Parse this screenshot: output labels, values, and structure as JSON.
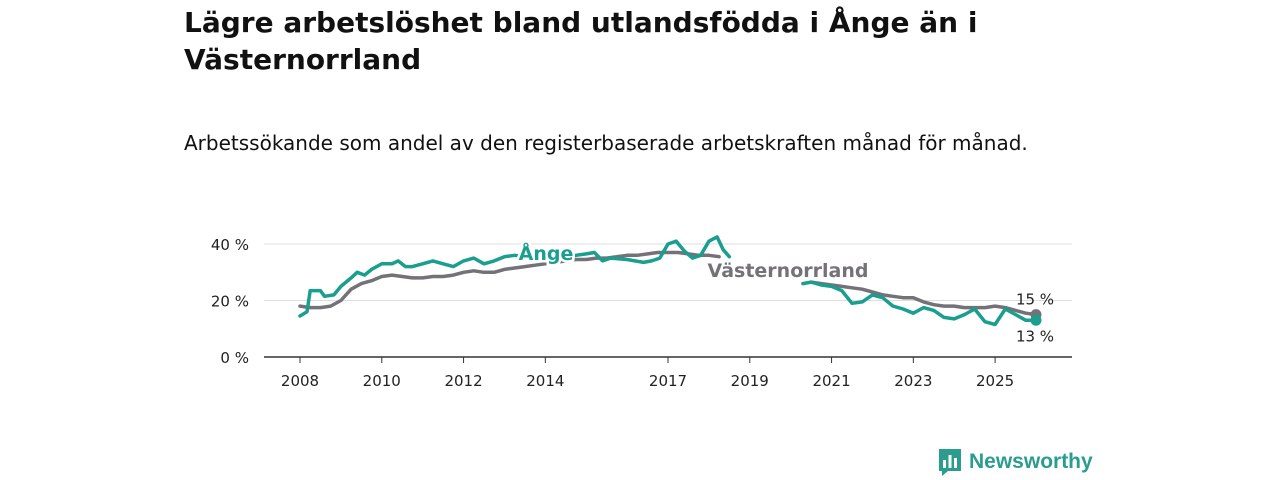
{
  "title": "Lägre arbetslöshet bland utlandsfödda i Ånge än i Västernorrland",
  "subtitle": "Arbetssökande som andel av den registerbaserade arbetskraften månad för månad.",
  "brand": {
    "name": "Newsworthy"
  },
  "colors": {
    "ange": "#1a9e8f",
    "vasternorrland": "#757178",
    "grid": "#dddddd",
    "axis": "#333333"
  },
  "chart_data": {
    "type": "line",
    "title": "Lägre arbetslöshet bland utlandsfödda i Ånge än i Västernorrland",
    "xlabel": "",
    "ylabel": "",
    "xlim": [
      2008,
      2026
    ],
    "ylim": [
      0,
      40
    ],
    "y_ticks": [
      0,
      20,
      40
    ],
    "y_tick_labels": [
      "0 %",
      "20 %",
      "40 %"
    ],
    "x_ticks": [
      2008,
      2010,
      2012,
      2014,
      2017,
      2019,
      2021,
      2023,
      2025
    ],
    "x_tick_labels": [
      "2008",
      "2010",
      "2012",
      "2014",
      "2017",
      "2019",
      "2021",
      "2023",
      "2025"
    ],
    "grid": true,
    "series": [
      {
        "name": "Ånge",
        "label": "Ånge",
        "end_label": "13 %",
        "end_value": 13,
        "x": [
          2008.0,
          2008.17,
          2008.25,
          2008.5,
          2008.6,
          2008.83,
          2009.0,
          2009.25,
          2009.4,
          2009.58,
          2009.75,
          2010.0,
          2010.25,
          2010.4,
          2010.58,
          2010.75,
          2011.0,
          2011.25,
          2011.5,
          2011.75,
          2012.0,
          2012.25,
          2012.5,
          2012.75,
          2013.0,
          2013.25,
          2013.5,
          null,
          2014.5,
          2014.75,
          2015.0,
          2015.2,
          2015.4,
          2015.6,
          2016.0,
          2016.4,
          2016.6,
          2016.8,
          2017.0,
          2017.2,
          2017.4,
          2017.6,
          2017.8,
          2018.0,
          2018.2,
          2018.35,
          2018.5,
          null,
          2020.3,
          2020.5,
          2020.75,
          2021.0,
          2021.25,
          2021.5,
          2021.75,
          2022.0,
          2022.25,
          2022.5,
          2022.75,
          2023.0,
          2023.25,
          2023.5,
          2023.75,
          2024.0,
          2024.25,
          2024.5,
          2024.75,
          2025.0,
          2025.25,
          2025.5,
          2025.75,
          2026.0
        ],
        "values": [
          14.5,
          16,
          23.5,
          23.5,
          21.5,
          22,
          25,
          28,
          30,
          29,
          31,
          33,
          33,
          34,
          32,
          32,
          33,
          34,
          33,
          32,
          34,
          35,
          33,
          34,
          35.5,
          36,
          35.5,
          null,
          35,
          36,
          36.5,
          37,
          34,
          35,
          34.5,
          33.5,
          34,
          35,
          40,
          41,
          37.5,
          35,
          36,
          41,
          42.5,
          38,
          35.5,
          null,
          26,
          26.5,
          25.5,
          25,
          23.5,
          19,
          19.5,
          22,
          21,
          18,
          17,
          15.5,
          17.5,
          16.5,
          14,
          13.5,
          15,
          17,
          12.5,
          11.5,
          17,
          15,
          13,
          13
        ]
      },
      {
        "name": "Västernorrland",
        "label": "Västernorrland",
        "end_label": "15 %",
        "end_value": 15,
        "x": [
          2008.0,
          2008.25,
          2008.5,
          2008.75,
          2009.0,
          2009.25,
          2009.5,
          2009.75,
          2010.0,
          2010.25,
          2010.5,
          2010.75,
          2011.0,
          2011.25,
          2011.5,
          2011.75,
          2012.0,
          2012.25,
          2012.5,
          2012.75,
          2013.0,
          2013.25,
          2013.5,
          2013.75,
          2014.0,
          2014.25,
          2014.5,
          2014.75,
          2015.0,
          2015.25,
          2015.5,
          2015.75,
          2016.0,
          2016.25,
          2016.5,
          2016.75,
          2017.0,
          2017.25,
          2017.5,
          2017.75,
          2018.0,
          2018.25,
          null,
          2020.5,
          2020.75,
          2021.0,
          2021.25,
          2021.5,
          2021.75,
          2022.0,
          2022.25,
          2022.5,
          2022.75,
          2023.0,
          2023.25,
          2023.5,
          2023.75,
          2024.0,
          2024.25,
          2024.5,
          2024.75,
          2025.0,
          2025.25,
          2025.5,
          2025.75,
          2026.0
        ],
        "values": [
          18,
          17.5,
          17.5,
          18,
          20,
          24,
          26,
          27,
          28.5,
          29,
          28.5,
          28,
          28,
          28.5,
          28.5,
          29,
          30,
          30.5,
          30,
          30,
          31,
          31.5,
          32,
          32.5,
          33,
          33.5,
          34,
          34.5,
          34.5,
          35,
          35,
          35.5,
          36,
          36,
          36.5,
          37,
          37,
          37,
          36.5,
          36,
          36,
          35.5,
          null,
          26.5,
          26,
          25.5,
          25,
          24.5,
          24,
          23,
          22,
          21.5,
          21,
          21,
          19.5,
          18.5,
          18,
          18,
          17.5,
          17.5,
          17.5,
          18,
          17.5,
          16.5,
          15.5,
          15
        ]
      }
    ]
  }
}
